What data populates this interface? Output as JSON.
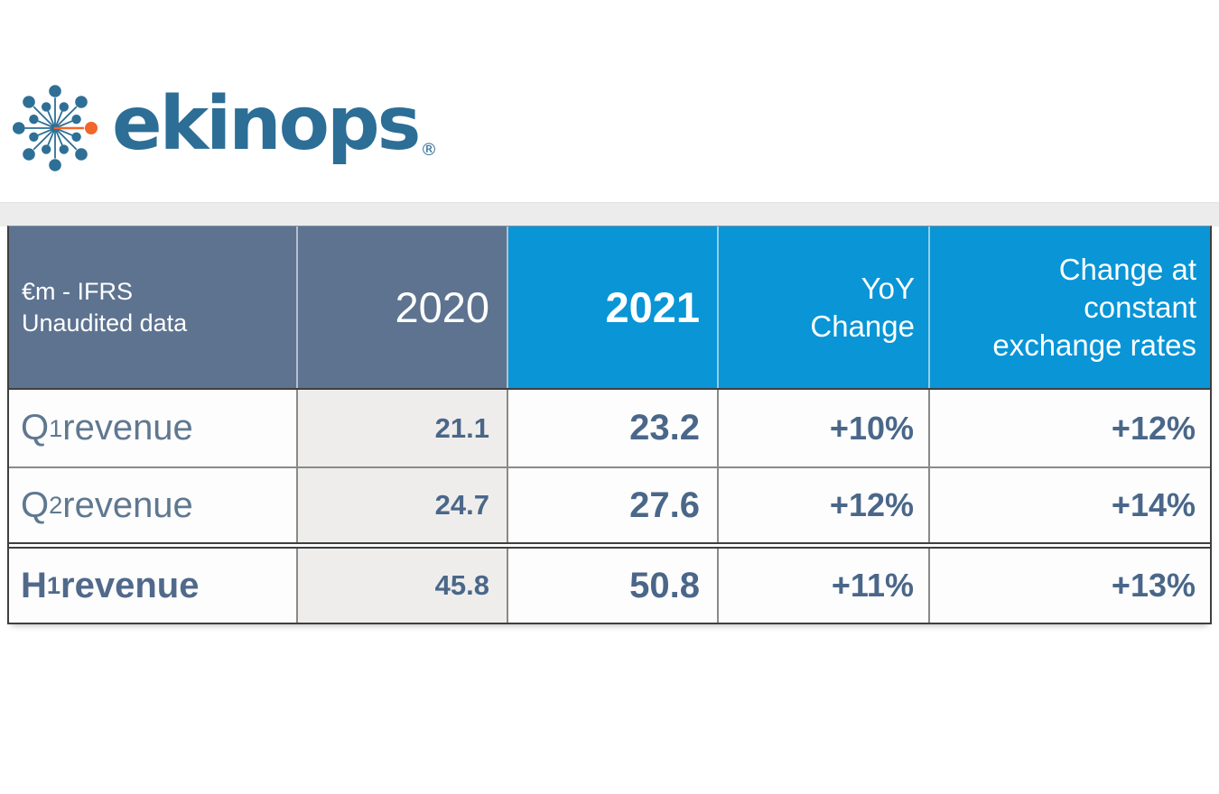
{
  "logo": {
    "brand": "ekinops",
    "registered": "®"
  },
  "table": {
    "header": {
      "metric_line1": "€m - IFRS",
      "metric_line2": "Unaudited data",
      "y2020": "2020",
      "y2021": "2021",
      "yoy_line1": "YoY",
      "yoy_line2": "Change",
      "cer_line1": "Change at",
      "cer_line2": "constant",
      "cer_line3": "exchange rates"
    },
    "rows": [
      {
        "label": "Q1 revenue",
        "y2020": "21.1",
        "y2021": "23.2",
        "yoy": "+10%",
        "cer": "+12%"
      },
      {
        "label": "Q2 revenue",
        "y2020": "24.7",
        "y2021": "27.6",
        "yoy": "+12%",
        "cer": "+14%"
      },
      {
        "label": "H1 revenue",
        "y2020": "45.8",
        "y2021": "50.8",
        "yoy": "+11%",
        "cer": "+13%"
      }
    ]
  },
  "chart_data": {
    "type": "table",
    "columns": [
      "€m - IFRS Unaudited data",
      "2020",
      "2021",
      "YoY Change",
      "Change at constant exchange rates"
    ],
    "rows": [
      [
        "Q1 revenue",
        21.1,
        23.2,
        "+10%",
        "+12%"
      ],
      [
        "Q2 revenue",
        24.7,
        27.6,
        "+12%",
        "+14%"
      ],
      [
        "H1 revenue",
        45.8,
        50.8,
        "+11%",
        "+13%"
      ]
    ]
  },
  "colors": {
    "page_bg": "#ffffff",
    "band_gray": "#ececec",
    "header_slate": "#5d7390",
    "header_blue": "#0995d6",
    "cell_gray": "#efedec",
    "cell_white": "#fdfdfd",
    "label_text": "#5f7890",
    "number_text": "#4a6789",
    "border_dark": "#3f3f3f",
    "border_gray": "#8a8a8a",
    "logo_blue": "#2c6e96",
    "logo_orange": "#f2662a"
  }
}
